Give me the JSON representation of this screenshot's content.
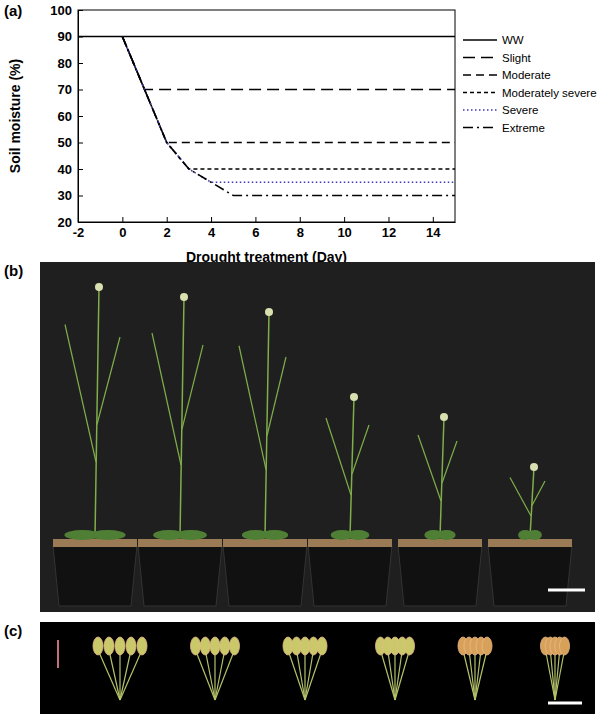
{
  "chart_data": {
    "type": "line",
    "title": "(a)",
    "x_label": "Drought treatment (Day)",
    "y_label": "Soil moisture (%)",
    "x": [
      -2,
      0,
      1,
      2,
      3,
      4,
      5,
      15
    ],
    "series": [
      {
        "name": "WW",
        "color": "#000000",
        "line_style": "solid",
        "values": [
          90,
          90,
          90,
          90,
          90,
          90,
          90,
          90
        ]
      },
      {
        "name": "Slight",
        "color": "#000000",
        "line_style": "long-dash",
        "values": [
          null,
          90,
          70,
          70,
          70,
          70,
          70,
          70
        ]
      },
      {
        "name": "Moderate",
        "color": "#000000",
        "line_style": "dash",
        "values": [
          null,
          90,
          70,
          50,
          50,
          50,
          50,
          50
        ]
      },
      {
        "name": "Moderately severe",
        "color": "#000000",
        "line_style": "short-dash",
        "values": [
          null,
          90,
          70,
          50,
          40,
          40,
          40,
          40
        ]
      },
      {
        "name": "Severe",
        "color": "#3b3bb3",
        "line_style": "dotted",
        "values": [
          null,
          90,
          70,
          50,
          40,
          35,
          35,
          35
        ]
      },
      {
        "name": "Extreme",
        "color": "#000000",
        "line_style": "dash-dot",
        "values": [
          null,
          90,
          70,
          50,
          40,
          35,
          30,
          30
        ]
      }
    ],
    "xlim": [
      -2,
      15
    ],
    "xticks": [
      -2,
      0,
      2,
      4,
      6,
      8,
      10,
      12,
      14
    ],
    "ylim": [
      20,
      100
    ],
    "yticks": [
      20,
      30,
      40,
      50,
      60,
      70,
      80,
      90,
      100
    ],
    "grid": false,
    "legend": "right"
  },
  "photo_panels": [
    {
      "label": "(b)"
    },
    {
      "label": "(c)"
    }
  ]
}
